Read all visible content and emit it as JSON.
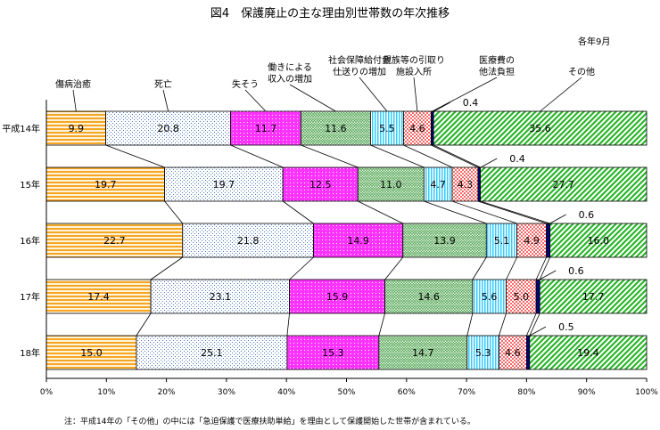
{
  "title": "図4　保護廃止の主な理由別世帯数の年次推移",
  "unit_note": "各年9月",
  "footnote": "注：平成14年の「その他」の中には「急迫保護で医療扶助単給」を理由として保護開始した世帯が含まれている。",
  "colors": {
    "sick": "#f5a623",
    "death": "#c6d8f0",
    "job_loss": "#ff33ff",
    "income": "#c8ecc8",
    "benefit": "#33ccff",
    "family": "#ff6666",
    "medical": "#000080",
    "other": "#66e066"
  },
  "chart_data": {
    "type": "bar",
    "orientation": "horizontal",
    "stacked": true,
    "percent_stacked": true,
    "categories": [
      "平成14年",
      "15年",
      "16年",
      "17年",
      "18年"
    ],
    "series": [
      {
        "name": "傷病治癒",
        "values": [
          9.9,
          19.7,
          22.7,
          17.4,
          15.0
        ]
      },
      {
        "name": "死亡",
        "values": [
          20.8,
          19.7,
          21.8,
          23.1,
          25.1
        ]
      },
      {
        "name": "失そう",
        "values": [
          11.7,
          12.5,
          14.9,
          15.9,
          15.3
        ]
      },
      {
        "name": "働きによる収入の増加",
        "values": [
          11.6,
          11.0,
          13.9,
          14.6,
          14.7
        ]
      },
      {
        "name": "社会保障給付金仕送りの増加",
        "values": [
          5.5,
          4.7,
          5.1,
          5.6,
          5.3
        ]
      },
      {
        "name": "親族等の引取り施設入所",
        "values": [
          4.6,
          4.3,
          4.9,
          5.0,
          4.6
        ]
      },
      {
        "name": "医療費の他法負担",
        "values": [
          0.4,
          0.4,
          0.6,
          0.6,
          0.5
        ]
      },
      {
        "name": "その他",
        "values": [
          35.6,
          27.7,
          16.0,
          17.7,
          19.4
        ]
      }
    ],
    "xlim": [
      0,
      100
    ],
    "x_ticks": [
      "0%",
      "10%",
      "20%",
      "30%",
      "40%",
      "50%",
      "60%",
      "70%",
      "80%",
      "90%",
      "100%"
    ],
    "legend": "labels above first bar"
  }
}
